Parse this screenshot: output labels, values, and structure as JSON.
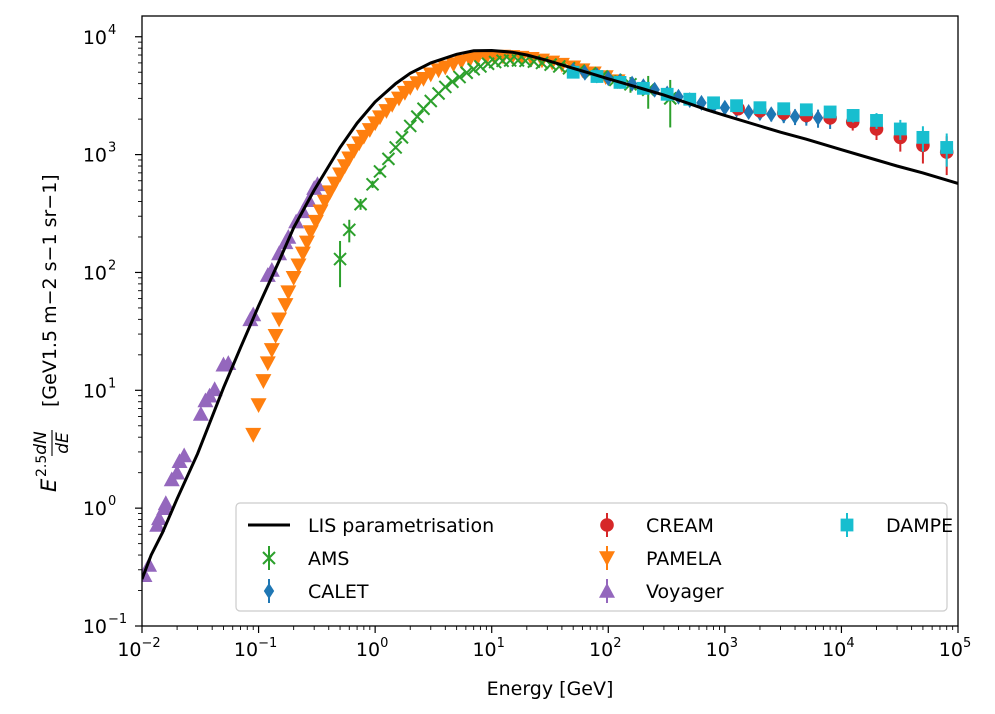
{
  "chart_data": {
    "type": "scatter",
    "title": "",
    "xlabel": "Energy [GeV]",
    "ylabel": "E^{2.5} dN/dE  [GeV^{1.5} m^{-2} s^{-1} sr^{-1}]",
    "ylabel_parts": {
      "base": "E",
      "power": "2.5",
      "frac_num": "dN",
      "frac_den": "dE",
      "units": "[GeV1.5 m−2 s−1 sr−1]"
    },
    "xscale": "log",
    "yscale": "log",
    "xlim": [
      0.01,
      100000
    ],
    "ylim": [
      0.1,
      15000
    ],
    "x_ticks": [
      {
        "value": 0.01,
        "base": "10",
        "exp": "−2"
      },
      {
        "value": 0.1,
        "base": "10",
        "exp": "−1"
      },
      {
        "value": 1,
        "base": "10",
        "exp": "0"
      },
      {
        "value": 10,
        "base": "10",
        "exp": "1"
      },
      {
        "value": 100,
        "base": "10",
        "exp": "2"
      },
      {
        "value": 1000,
        "base": "10",
        "exp": "3"
      },
      {
        "value": 10000,
        "base": "10",
        "exp": "4"
      },
      {
        "value": 100000,
        "base": "10",
        "exp": "5"
      }
    ],
    "y_ticks": [
      {
        "value": 0.1,
        "base": "10",
        "exp": "−1"
      },
      {
        "value": 1,
        "base": "10",
        "exp": "0"
      },
      {
        "value": 10,
        "base": "10",
        "exp": "1"
      },
      {
        "value": 100,
        "base": "10",
        "exp": "2"
      },
      {
        "value": 1000,
        "base": "10",
        "exp": "3"
      },
      {
        "value": 10000,
        "base": "10",
        "exp": "4"
      }
    ],
    "legend": {
      "placement": "lower-right",
      "columns": 3,
      "entries": [
        {
          "name": "LIS parametrisation",
          "marker": "line",
          "color": "#000000"
        },
        {
          "name": "AMS",
          "marker": "x",
          "color": "#2ca02c"
        },
        {
          "name": "CALET",
          "marker": "diamond",
          "color": "#1f77b4"
        },
        {
          "name": "CREAM",
          "marker": "circle",
          "color": "#d62728"
        },
        {
          "name": "PAMELA",
          "marker": "triangle-down",
          "color": "#ff7f0e"
        },
        {
          "name": "Voyager",
          "marker": "triangle-up",
          "color": "#9467bd"
        },
        {
          "name": "DAMPE",
          "marker": "square",
          "color": "#17becf"
        }
      ]
    },
    "series": [
      {
        "name": "LIS parametrisation",
        "kind": "line",
        "color": "#000000",
        "points": [
          [
            0.01,
            0.25
          ],
          [
            0.012,
            0.4
          ],
          [
            0.015,
            0.62
          ],
          [
            0.02,
            1.2
          ],
          [
            0.03,
            2.9
          ],
          [
            0.05,
            10.5
          ],
          [
            0.07,
            23
          ],
          [
            0.1,
            52
          ],
          [
            0.15,
            125
          ],
          [
            0.2,
            240
          ],
          [
            0.3,
            500
          ],
          [
            0.5,
            1150
          ],
          [
            0.7,
            1850
          ],
          [
            1,
            2800
          ],
          [
            1.5,
            4000
          ],
          [
            2,
            4900
          ],
          [
            3,
            6000
          ],
          [
            5,
            7100
          ],
          [
            7,
            7600
          ],
          [
            10,
            7650
          ],
          [
            15,
            7400
          ],
          [
            20,
            7000
          ],
          [
            30,
            6300
          ],
          [
            50,
            5400
          ],
          [
            70,
            4900
          ],
          [
            100,
            4400
          ],
          [
            200,
            3600
          ],
          [
            300,
            3200
          ],
          [
            500,
            2700
          ],
          [
            700,
            2400
          ],
          [
            1000,
            2150
          ],
          [
            2000,
            1750
          ],
          [
            3000,
            1550
          ],
          [
            5000,
            1350
          ],
          [
            10000,
            1100
          ],
          [
            20000,
            900
          ],
          [
            30000,
            800
          ],
          [
            50000,
            700
          ],
          [
            100000,
            570
          ]
        ]
      },
      {
        "name": "Voyager",
        "kind": "scatter",
        "marker": "triangle-up",
        "color": "#9467bd",
        "points": [
          [
            0.0105,
            0.27,
            0.03
          ],
          [
            0.0115,
            0.33,
            0.03
          ],
          [
            0.0135,
            0.72,
            0.06
          ],
          [
            0.014,
            0.82,
            0.06
          ],
          [
            0.0155,
            1.0,
            0.08
          ],
          [
            0.016,
            1.1,
            0.08
          ],
          [
            0.018,
            1.75,
            0.12
          ],
          [
            0.02,
            2.0,
            0.15
          ],
          [
            0.021,
            2.5,
            0.2
          ],
          [
            0.023,
            2.8,
            0.2
          ],
          [
            0.032,
            6.3,
            0.4
          ],
          [
            0.035,
            8.2,
            0.5
          ],
          [
            0.038,
            9.0,
            0.5
          ],
          [
            0.042,
            10.2,
            0.6
          ],
          [
            0.05,
            16.5,
            1.0
          ],
          [
            0.055,
            17,
            1.0
          ],
          [
            0.085,
            40,
            3
          ],
          [
            0.09,
            44,
            3
          ],
          [
            0.12,
            95,
            5
          ],
          [
            0.13,
            105,
            5
          ],
          [
            0.15,
            145,
            6
          ],
          [
            0.17,
            180,
            8
          ],
          [
            0.18,
            200,
            8
          ],
          [
            0.21,
            270,
            10
          ],
          [
            0.24,
            330,
            12
          ],
          [
            0.27,
            410,
            15
          ],
          [
            0.3,
            520,
            20
          ],
          [
            0.32,
            560,
            20
          ]
        ]
      },
      {
        "name": "PAMELA",
        "kind": "scatter",
        "marker": "triangle-down",
        "color": "#ff7f0e",
        "points": [
          [
            0.09,
            4.2,
            0.4
          ],
          [
            0.1,
            7.5,
            0.6
          ],
          [
            0.11,
            12,
            0.8
          ],
          [
            0.12,
            17,
            1
          ],
          [
            0.13,
            22,
            1.2
          ],
          [
            0.14,
            29,
            1.5
          ],
          [
            0.15,
            40,
            2
          ],
          [
            0.17,
            53,
            3
          ],
          [
            0.18,
            68,
            3
          ],
          [
            0.2,
            90,
            4
          ],
          [
            0.22,
            115,
            5
          ],
          [
            0.24,
            145,
            6
          ],
          [
            0.26,
            180,
            8
          ],
          [
            0.28,
            220,
            9
          ],
          [
            0.31,
            270,
            10
          ],
          [
            0.34,
            330,
            12
          ],
          [
            0.37,
            400,
            15
          ],
          [
            0.41,
            480,
            18
          ],
          [
            0.45,
            570,
            20
          ],
          [
            0.5,
            680,
            25
          ],
          [
            0.55,
            800,
            30
          ],
          [
            0.6,
            930,
            30
          ],
          [
            0.66,
            1080,
            35
          ],
          [
            0.73,
            1250,
            40
          ],
          [
            0.8,
            1420,
            40
          ],
          [
            0.9,
            1620,
            45
          ],
          [
            1.0,
            1850,
            50
          ],
          [
            1.1,
            2080,
            55
          ],
          [
            1.25,
            2350,
            60
          ],
          [
            1.4,
            2650,
            60
          ],
          [
            1.6,
            3000,
            70
          ],
          [
            1.8,
            3350,
            70
          ],
          [
            2.0,
            3700,
            80
          ],
          [
            2.3,
            4050,
            80
          ],
          [
            2.6,
            4400,
            90
          ],
          [
            3.0,
            4800,
            90
          ],
          [
            3.5,
            5200,
            100
          ],
          [
            4.0,
            5500,
            100
          ],
          [
            4.7,
            5850,
            110
          ],
          [
            5.5,
            6150,
            110
          ],
          [
            6.5,
            6400,
            120
          ],
          [
            7.5,
            6550,
            120
          ],
          [
            9,
            6700,
            130
          ],
          [
            10.5,
            6750,
            130
          ],
          [
            12.5,
            6800,
            140
          ],
          [
            15,
            6750,
            150
          ],
          [
            18,
            6650,
            160
          ],
          [
            22,
            6500,
            170
          ],
          [
            27,
            6300,
            180
          ],
          [
            33,
            6050,
            200
          ],
          [
            40,
            5800,
            220
          ],
          [
            50,
            5500,
            250
          ],
          [
            60,
            5200,
            280
          ],
          [
            75,
            4900,
            320
          ],
          [
            95,
            4550,
            380
          ],
          [
            120,
            4200,
            450
          ]
        ]
      },
      {
        "name": "AMS",
        "kind": "scatter",
        "marker": "x",
        "color": "#2ca02c",
        "points": [
          [
            0.5,
            130,
            55
          ],
          [
            0.6,
            230,
            50
          ],
          [
            0.75,
            380,
            40
          ],
          [
            0.95,
            560,
            40
          ],
          [
            1.1,
            720,
            40
          ],
          [
            1.3,
            920,
            40
          ],
          [
            1.5,
            1150,
            40
          ],
          [
            1.7,
            1400,
            40
          ],
          [
            2.0,
            1750,
            40
          ],
          [
            2.3,
            2100,
            40
          ],
          [
            2.6,
            2450,
            40
          ],
          [
            3.0,
            2850,
            50
          ],
          [
            3.5,
            3300,
            50
          ],
          [
            4.0,
            3750,
            50
          ],
          [
            4.6,
            4150,
            50
          ],
          [
            5.3,
            4550,
            60
          ],
          [
            6.1,
            4950,
            60
          ],
          [
            7.0,
            5300,
            60
          ],
          [
            8.0,
            5600,
            60
          ],
          [
            9.3,
            5900,
            70
          ],
          [
            10.7,
            6100,
            70
          ],
          [
            12.4,
            6250,
            70
          ],
          [
            14.4,
            6300,
            80
          ],
          [
            16.8,
            6300,
            80
          ],
          [
            19.5,
            6250,
            90
          ],
          [
            23,
            6150,
            100
          ],
          [
            27,
            6000,
            110
          ],
          [
            32,
            5800,
            120
          ],
          [
            38,
            5600,
            140
          ],
          [
            46,
            5400,
            160
          ],
          [
            56,
            5150,
            180
          ],
          [
            70,
            4900,
            220
          ],
          [
            88,
            4600,
            300
          ],
          [
            115,
            4300,
            400
          ],
          [
            155,
            3950,
            600
          ],
          [
            220,
            3550,
            1100
          ],
          [
            340,
            3000,
            1300
          ]
        ]
      },
      {
        "name": "CALET",
        "kind": "scatter",
        "marker": "diamond",
        "color": "#1f77b4",
        "points": [
          [
            50,
            5200,
            150
          ],
          [
            63,
            4950,
            150
          ],
          [
            80,
            4700,
            150
          ],
          [
            100,
            4450,
            150
          ],
          [
            126,
            4200,
            160
          ],
          [
            160,
            4000,
            170
          ],
          [
            200,
            3800,
            180
          ],
          [
            250,
            3550,
            190
          ],
          [
            320,
            3300,
            200
          ],
          [
            400,
            3100,
            210
          ],
          [
            500,
            2900,
            220
          ],
          [
            630,
            2750,
            230
          ],
          [
            800,
            2600,
            240
          ],
          [
            1000,
            2500,
            250
          ],
          [
            1260,
            2400,
            260
          ],
          [
            1600,
            2300,
            270
          ],
          [
            2000,
            2250,
            280
          ],
          [
            2500,
            2200,
            290
          ],
          [
            3200,
            2150,
            300
          ],
          [
            4000,
            2100,
            320
          ],
          [
            5000,
            2100,
            340
          ],
          [
            6300,
            2050,
            360
          ],
          [
            8000,
            2050,
            400
          ]
        ]
      },
      {
        "name": "CREAM",
        "kind": "scatter",
        "marker": "circle",
        "color": "#d62728",
        "points": [
          [
            1300,
            2450,
            150
          ],
          [
            2000,
            2350,
            180
          ],
          [
            3200,
            2250,
            200
          ],
          [
            5000,
            2150,
            230
          ],
          [
            8000,
            2050,
            260
          ],
          [
            12500,
            1900,
            300
          ],
          [
            20000,
            1650,
            320
          ],
          [
            32000,
            1400,
            340
          ],
          [
            50000,
            1200,
            360
          ],
          [
            80000,
            1050,
            380
          ]
        ]
      },
      {
        "name": "DAMPE",
        "kind": "scatter",
        "marker": "square",
        "color": "#17becf",
        "points": [
          [
            50,
            5000,
            200
          ],
          [
            80,
            4600,
            200
          ],
          [
            126,
            4100,
            200
          ],
          [
            200,
            3650,
            200
          ],
          [
            320,
            3250,
            200
          ],
          [
            500,
            2950,
            200
          ],
          [
            800,
            2750,
            200
          ],
          [
            1260,
            2600,
            200
          ],
          [
            2000,
            2500,
            200
          ],
          [
            3200,
            2450,
            220
          ],
          [
            5000,
            2400,
            240
          ],
          [
            8000,
            2300,
            260
          ],
          [
            12600,
            2150,
            280
          ],
          [
            20000,
            1950,
            300
          ],
          [
            32000,
            1650,
            320
          ],
          [
            50000,
            1400,
            340
          ],
          [
            80000,
            1150,
            360
          ]
        ]
      }
    ]
  }
}
